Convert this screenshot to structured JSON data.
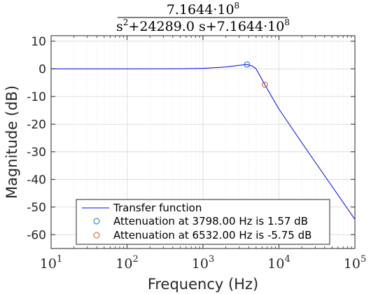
{
  "chart_data": {
    "type": "line",
    "title": {
      "numerator": "7.1644·10",
      "numerator_exp": "8",
      "den_part1": "s",
      "den_part1_exp": "2",
      "den_part2": "+24289.0 s+7.1644·10",
      "den_part2_exp": "8"
    },
    "xlabel": "Frequency (Hz)",
    "ylabel": "Magnitude (dB)",
    "xscale": "log",
    "xlim": [
      10,
      100000
    ],
    "ylim": [
      -65,
      12
    ],
    "yticks": [
      10,
      0,
      -10,
      -20,
      -30,
      -40,
      -50,
      -60
    ],
    "xticks": [
      {
        "value": 10,
        "base": "10",
        "exp": "1"
      },
      {
        "value": 100,
        "base": "10",
        "exp": "2"
      },
      {
        "value": 1000,
        "base": "10",
        "exp": "3"
      },
      {
        "value": 10000,
        "base": "10",
        "exp": "4"
      },
      {
        "value": 100000,
        "base": "10",
        "exp": "5"
      }
    ],
    "grid": true,
    "series": [
      {
        "name": "Transfer function",
        "color": "#0000ff",
        "x": [
          10,
          100,
          500,
          1000,
          2000,
          3000,
          3798,
          4500,
          5000,
          6000,
          6532,
          8000,
          10000,
          20000,
          50000,
          100000
        ],
        "y": [
          0.0,
          0.0,
          0.04,
          0.19,
          0.66,
          1.3,
          1.57,
          1.0,
          0.0,
          -3.9,
          -5.75,
          -10.0,
          -14.54,
          -26.76,
          -42.52,
          -54.47
        ]
      }
    ],
    "markers": [
      {
        "name": "Attenuation at 3798.00 Hz is 1.57 dB",
        "x": 3798,
        "y": 1.57,
        "color": "#0072bd"
      },
      {
        "name": "Attenuation at 6532.00 Hz is -5.75 dB",
        "x": 6532,
        "y": -5.75,
        "color": "#d95319"
      }
    ],
    "legend": {
      "position": "bottom-center",
      "entries": [
        "Transfer function",
        "Attenuation at 3798.00 Hz is 1.57 dB",
        "Attenuation at 6532.00 Hz is -5.75 dB"
      ]
    }
  }
}
